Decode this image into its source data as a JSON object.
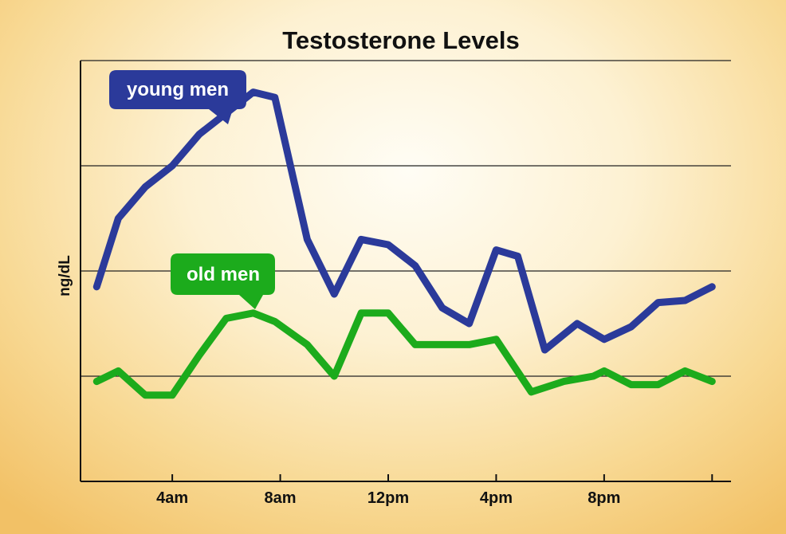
{
  "chart_data": {
    "type": "line",
    "title": "Testosterone Levels",
    "xlabel": "",
    "ylabel": "ng/dL",
    "x_ticks": [
      "4am",
      "8am",
      "12pm",
      "4pm",
      "8pm"
    ],
    "x_tick_hours": [
      4,
      8,
      12,
      16,
      20
    ],
    "xlim": [
      0.6,
      24.7
    ],
    "ylim": [
      0,
      4
    ],
    "grid": true,
    "legend": "none",
    "series": [
      {
        "name": "young men",
        "color": "#2b3a9a",
        "x": [
          1.2,
          2.0,
          3.0,
          4.0,
          5.0,
          6.0,
          7.0,
          7.8,
          9.0,
          10.0,
          11.0,
          12.0,
          13.0,
          14.0,
          15.0,
          16.0,
          16.8,
          17.8,
          19.0,
          20.0,
          21.0,
          22.0,
          23.0,
          24.0
        ],
        "y": [
          1.85,
          2.5,
          2.8,
          3.0,
          3.3,
          3.5,
          3.7,
          3.65,
          2.3,
          1.78,
          2.3,
          2.25,
          2.05,
          1.65,
          1.5,
          2.2,
          2.14,
          1.25,
          1.5,
          1.35,
          1.47,
          1.7,
          1.72,
          1.85
        ]
      },
      {
        "name": "old men",
        "color": "#1cab1c",
        "x": [
          1.2,
          2.0,
          3.0,
          4.0,
          5.0,
          6.0,
          7.0,
          7.8,
          9.0,
          10.0,
          11.0,
          12.0,
          13.0,
          14.0,
          15.0,
          16.0,
          17.3,
          18.5,
          19.6,
          20.0,
          21.0,
          22.0,
          23.0,
          24.0
        ],
        "y": [
          0.95,
          1.05,
          0.82,
          0.82,
          1.2,
          1.55,
          1.6,
          1.52,
          1.3,
          1.0,
          1.6,
          1.6,
          1.3,
          1.3,
          1.3,
          1.35,
          0.85,
          0.95,
          1.0,
          1.05,
          0.92,
          0.92,
          1.05,
          0.95
        ]
      }
    ]
  }
}
